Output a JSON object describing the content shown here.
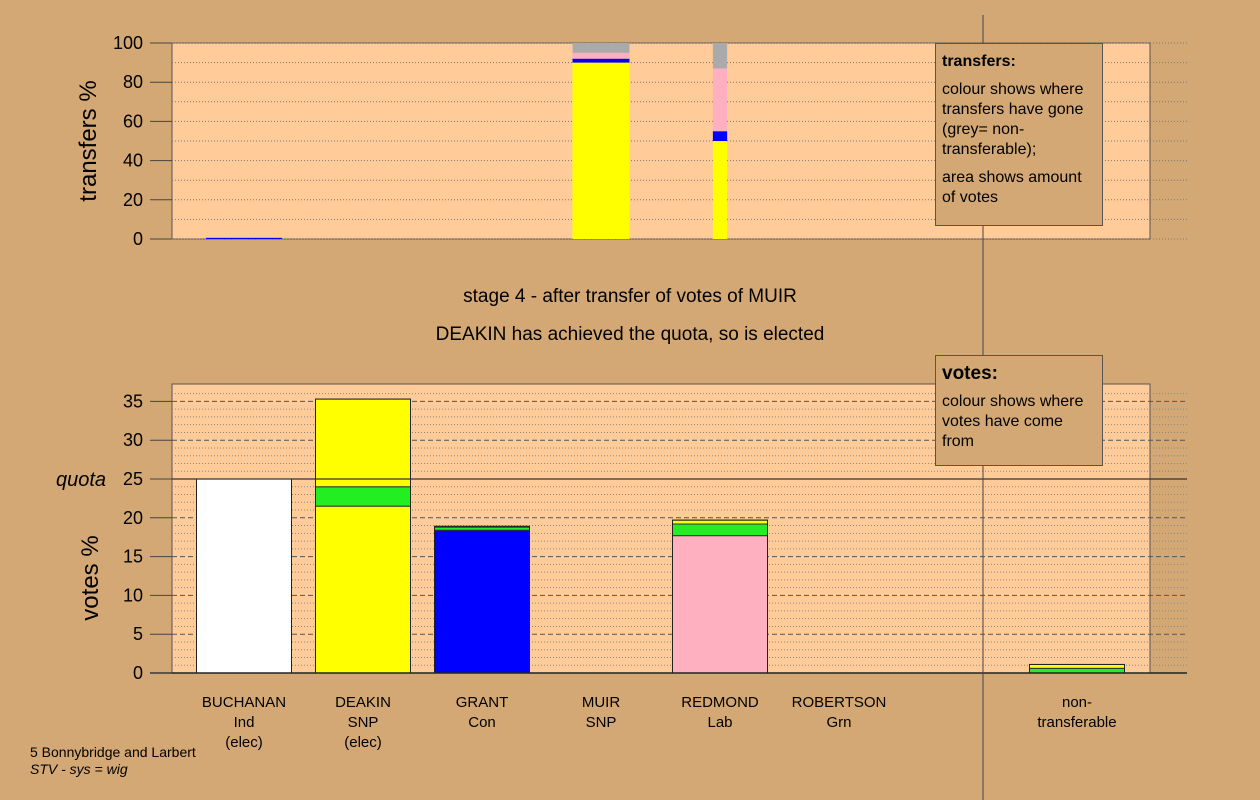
{
  "stage_title": "stage 4 - after transfer of votes of MUIR",
  "elected_msg": "DEAKIN has achieved the quota, so is elected",
  "transfers_legend": {
    "heading": "transfers:",
    "line1": "colour shows where transfers have gone (grey= non-transferable);",
    "line2": "area shows amount of votes"
  },
  "votes_legend": {
    "heading": "votes:",
    "line1": "colour shows where votes have come from"
  },
  "footer": {
    "line1": "5 Bonnybridge and Larbert",
    "line2": "STV - sys = wig"
  },
  "colors": {
    "Ind": "#ffffff",
    "SNP": "#ffff00",
    "Con": "#0000ff",
    "Lab": "#ffb0c0",
    "Grn": "#22ee22",
    "nontransferable": "#aaaaaa",
    "background": "#d4a874",
    "plot": "#ffcc99"
  },
  "candidates": [
    {
      "name": "BUCHANAN",
      "party": "Ind",
      "status": "(elec)"
    },
    {
      "name": "DEAKIN",
      "party": "SNP",
      "status": "(elec)"
    },
    {
      "name": "GRANT",
      "party": "Con",
      "status": ""
    },
    {
      "name": "MUIR",
      "party": "SNP",
      "status": ""
    },
    {
      "name": "REDMOND",
      "party": "Lab",
      "status": ""
    },
    {
      "name": "ROBERTSON",
      "party": "Grn",
      "status": ""
    },
    {
      "name": "non-",
      "party": "transferable",
      "status": ""
    }
  ],
  "chart_data": [
    {
      "type": "bar",
      "stacked": true,
      "ylabel": "transfers %",
      "ylim": [
        0,
        100
      ],
      "yticks": [
        0,
        20,
        40,
        60,
        80,
        100
      ],
      "bars": [
        {
          "candidate": "BUCHANAN",
          "width_fraction": 0.8,
          "segments": [
            {
              "to": "Con",
              "from": 0,
              "to_value": 0.6
            }
          ]
        },
        {
          "candidate": "MUIR",
          "width_fraction": 0.6,
          "segments": [
            {
              "to": "SNP",
              "from": 0,
              "to_value": 90
            },
            {
              "to": "Con",
              "from": 90,
              "to_value": 92
            },
            {
              "to": "Lab",
              "from": 92,
              "to_value": 95
            },
            {
              "to": "nontransferable",
              "from": 95,
              "to_value": 100
            }
          ]
        },
        {
          "candidate": "REDMOND",
          "width_fraction": 0.15,
          "segments": [
            {
              "to": "SNP",
              "from": 0,
              "to_value": 50
            },
            {
              "to": "Con",
              "from": 50,
              "to_value": 55
            },
            {
              "to": "Lab",
              "from": 55,
              "to_value": 87
            },
            {
              "to": "nontransferable",
              "from": 87,
              "to_value": 100
            }
          ]
        }
      ]
    },
    {
      "type": "bar",
      "stacked": true,
      "ylabel": "votes %",
      "ylim": [
        0,
        37
      ],
      "yticks": [
        0,
        5,
        10,
        15,
        20,
        25,
        30,
        35
      ],
      "quota": 25,
      "quota_label": "quota",
      "bars": [
        {
          "candidate": "BUCHANAN",
          "segments": [
            {
              "from_party": "Ind",
              "value": 25.0
            }
          ]
        },
        {
          "candidate": "DEAKIN",
          "segments": [
            {
              "from_party": "SNP",
              "value": 21.5
            },
            {
              "from_party": "Grn",
              "value": 2.5
            },
            {
              "from_party": "SNP",
              "value": 11.3
            }
          ]
        },
        {
          "candidate": "GRANT",
          "segments": [
            {
              "from_party": "Con",
              "value": 18.4
            },
            {
              "from_party": "Grn",
              "value": 0.4
            },
            {
              "from_party": "SNP",
              "value": 0.1
            }
          ]
        },
        {
          "candidate": "MUIR",
          "segments": []
        },
        {
          "candidate": "REDMOND",
          "segments": [
            {
              "from_party": "Lab",
              "value": 17.7
            },
            {
              "from_party": "Grn",
              "value": 1.5
            },
            {
              "from_party": "SNP",
              "value": 0.5
            }
          ]
        },
        {
          "candidate": "ROBERTSON",
          "segments": []
        },
        {
          "candidate": "non-transferable",
          "segments": [
            {
              "from_party": "Grn",
              "value": 0.6
            },
            {
              "from_party": "SNP",
              "value": 0.5
            }
          ]
        }
      ]
    }
  ]
}
